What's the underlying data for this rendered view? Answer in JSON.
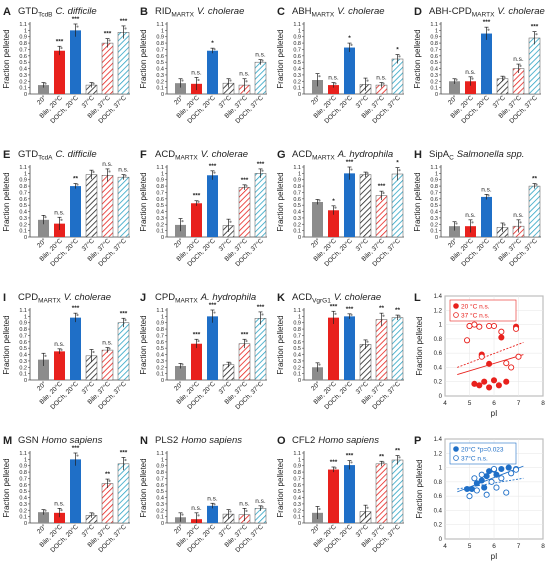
{
  "colors": {
    "ctrl": "#8c8c8c",
    "bile20": "#e8211d",
    "doch20": "#1f6fc7",
    "bile37": "#e8211d",
    "doch37": "#2ba3c4",
    "hatch37": "#222222",
    "scatter_red": "#e8211d",
    "scatter_blue": "#1f6fc7"
  },
  "categories": [
    "20°",
    "Bile, 20°C",
    "DOCh, 20°C",
    "37°C",
    "Bile, 37°C",
    "DOCh, 37°C"
  ],
  "ylabel": "Fraction pelleted",
  "yticks": [
    "0",
    "0.1",
    "0.2",
    "0.3",
    "0.4",
    "0.5",
    "0.6",
    "0.7",
    "0.8",
    "0.9",
    "1",
    "1.1"
  ],
  "chart_data": [
    {
      "type": "bar",
      "letter": "A",
      "title": "GTD",
      "sub": "TcdB",
      "species": "C. difficile",
      "values": [
        0.14,
        0.68,
        1.0,
        0.14,
        0.8,
        0.97
      ],
      "sig": [
        "",
        "***",
        "***",
        "",
        "***",
        "***"
      ],
      "ylim": [
        0,
        1.1
      ]
    },
    {
      "type": "bar",
      "letter": "B",
      "title": "RID",
      "sub": "MARTX",
      "species": "V. cholerae",
      "values": [
        0.17,
        0.16,
        0.68,
        0.17,
        0.14,
        0.5
      ],
      "sig": [
        "",
        "n.s.",
        "*",
        "",
        "n.s.",
        "n.s."
      ],
      "ylim": [
        0,
        1.1
      ]
    },
    {
      "type": "bar",
      "letter": "C",
      "title": "ABH",
      "sub": "MARTX",
      "species": "V. cholerae",
      "values": [
        0.22,
        0.14,
        0.73,
        0.15,
        0.14,
        0.55
      ],
      "sig": [
        "",
        "n.s.",
        "*",
        "",
        "n.s.",
        "*"
      ],
      "ylim": [
        0,
        1.1
      ]
    },
    {
      "type": "bar",
      "letter": "D",
      "title": "ABH-CPD",
      "sub": "MARTX",
      "species": "V. cholerae",
      "values": [
        0.2,
        0.2,
        0.95,
        0.24,
        0.4,
        0.88
      ],
      "sig": [
        "",
        "n.s.",
        "***",
        "",
        "n.s.",
        "***"
      ],
      "ylim": [
        0,
        1.1
      ]
    },
    {
      "type": "bar",
      "letter": "E",
      "title": "GTD",
      "sub": "TcdA",
      "species": "C. difficile",
      "values": [
        0.27,
        0.21,
        0.8,
        0.98,
        0.97,
        0.94
      ],
      "sig": [
        "",
        "n.s.",
        "**",
        "",
        "n.s.",
        "n.s."
      ],
      "ylim": [
        0,
        1.1
      ]
    },
    {
      "type": "bar",
      "letter": "F",
      "title": "ACD",
      "sub": "MARTX",
      "species": "V. cholerae",
      "values": [
        0.19,
        0.53,
        0.97,
        0.18,
        0.78,
        1.0
      ],
      "sig": [
        "",
        "***",
        "***",
        "",
        "***",
        "***"
      ],
      "ylim": [
        0,
        1.1
      ]
    },
    {
      "type": "bar",
      "letter": "G",
      "title": "ACD",
      "sub": "MARTX",
      "species": "A. hydrophila",
      "values": [
        0.55,
        0.42,
        1.0,
        0.98,
        0.65,
        0.99
      ],
      "sig": [
        "",
        "*",
        "***",
        "",
        "***",
        "*"
      ],
      "ylim": [
        0,
        1.1
      ]
    },
    {
      "type": "bar",
      "letter": "H",
      "title": "SipA",
      "sub": "C",
      "species": "Salmonella spp.",
      "values": [
        0.17,
        0.17,
        0.63,
        0.15,
        0.17,
        0.8
      ],
      "sig": [
        "",
        "n.s.",
        "n.s.",
        "",
        "n.s.",
        "**"
      ],
      "ylim": [
        0,
        1.1
      ]
    },
    {
      "type": "bar",
      "letter": "I",
      "title": "CPD",
      "sub": "MARTX",
      "species": "V. cholerae",
      "values": [
        0.32,
        0.45,
        0.98,
        0.38,
        0.47,
        0.9
      ],
      "sig": [
        "",
        "n.s.",
        "***",
        "",
        "n.s.",
        "***"
      ],
      "ylim": [
        0,
        1.1
      ]
    },
    {
      "type": "bar",
      "letter": "J",
      "title": "CPD",
      "sub": "MARTX",
      "species": "A. hydrophila",
      "values": [
        0.22,
        0.57,
        1.0,
        0.24,
        0.57,
        0.97
      ],
      "sig": [
        "",
        "***",
        "***",
        "",
        "***",
        "***"
      ],
      "ylim": [
        0,
        1.1
      ]
    },
    {
      "type": "bar",
      "letter": "K",
      "title": "ACD",
      "sub": "VgrG1",
      "species": "V. cholerae",
      "values": [
        0.2,
        0.98,
        1.0,
        0.56,
        0.95,
        0.98
      ],
      "sig": [
        "",
        "***",
        "***",
        "",
        "**",
        "**"
      ],
      "ylim": [
        0,
        1.1
      ]
    },
    {
      "type": "scatter",
      "letter": "L",
      "legend": [
        "20 °C n.s.",
        "37 °C n.s."
      ],
      "xlabel": "pI",
      "ylabel": "Fraction pelleted",
      "xlim": [
        4,
        8
      ],
      "ylim": [
        0,
        1.4
      ],
      "xticks": [
        "4",
        "5",
        "6",
        "7",
        "8"
      ],
      "yticks": [
        "0",
        "0.2",
        "0.4",
        "0.6",
        "0.8",
        "1",
        "1.2",
        "1.4"
      ],
      "series": [
        {
          "filled": true,
          "points": [
            [
              5.0,
              0.98
            ],
            [
              5.4,
              0.15
            ],
            [
              5.6,
              0.2
            ],
            [
              5.8,
              0.45
            ],
            [
              5.8,
              0.12
            ],
            [
              6.0,
              0.22
            ],
            [
              6.2,
              0.15
            ],
            [
              6.3,
              0.82
            ],
            [
              6.5,
              0.2
            ],
            [
              5.5,
              0.58
            ],
            [
              6.9,
              0.97
            ],
            [
              5.2,
              0.17
            ]
          ],
          "fit": [
            [
              4.5,
              0.3
            ],
            [
              7.2,
              0.58
            ]
          ]
        },
        {
          "filled": false,
          "points": [
            [
              4.9,
              0.78
            ],
            [
              5.0,
              0.98
            ],
            [
              5.4,
              0.97
            ],
            [
              5.5,
              0.55
            ],
            [
              5.8,
              0.98
            ],
            [
              6.0,
              0.98
            ],
            [
              6.3,
              0.9
            ],
            [
              6.5,
              0.46
            ],
            [
              6.7,
              0.4
            ],
            [
              6.9,
              0.94
            ],
            [
              7.0,
              0.55
            ],
            [
              5.2,
              1.0
            ]
          ],
          "fit": [
            [
              4.5,
              0.4
            ],
            [
              7.2,
              0.75
            ]
          ]
        }
      ]
    },
    {
      "type": "bar",
      "letter": "M",
      "title": "GSN",
      "sub": "",
      "species": "Homo sapiens",
      "values": [
        0.17,
        0.16,
        1.0,
        0.12,
        0.62,
        0.93
      ],
      "sig": [
        "",
        "n.s.",
        "***",
        "",
        "**",
        "***"
      ],
      "ylim": [
        0,
        1.1
      ]
    },
    {
      "type": "bar",
      "letter": "N",
      "title": "PLS2",
      "sub": "",
      "species": "Homo sapiens",
      "values": [
        0.09,
        0.06,
        0.27,
        0.14,
        0.13,
        0.23
      ],
      "sig": [
        "",
        "n.s.",
        "n.s.",
        "",
        "n.s.",
        "n.s."
      ],
      "ylim": [
        0,
        1.1
      ]
    },
    {
      "type": "bar",
      "letter": "O",
      "title": "CFL2",
      "sub": "",
      "species": "Homo sapiens",
      "values": [
        0.16,
        0.84,
        0.91,
        0.18,
        0.93,
        0.99
      ],
      "sig": [
        "",
        "***",
        "***",
        "",
        "**",
        "**"
      ],
      "ylim": [
        0,
        1.1
      ]
    },
    {
      "type": "scatter",
      "letter": "P",
      "legend": [
        "20°C *p=0.023",
        "37°C n.s."
      ],
      "xlabel": "pI",
      "ylabel": "Fraction pelleted",
      "xlim": [
        4,
        8
      ],
      "ylim": [
        0,
        1.4
      ],
      "xticks": [
        "4",
        "5",
        "6",
        "7",
        "8"
      ],
      "yticks": [
        "0",
        "0.2",
        "0.4",
        "0.6",
        "0.8",
        "1",
        "1.2",
        "1.4"
      ],
      "series": [
        {
          "filled": true,
          "points": [
            [
              4.9,
              0.7
            ],
            [
              5.1,
              0.7
            ],
            [
              5.3,
              0.78
            ],
            [
              5.5,
              0.82
            ],
            [
              5.7,
              0.88
            ],
            [
              5.8,
              0.95
            ],
            [
              6.0,
              0.97
            ],
            [
              6.1,
              0.9
            ],
            [
              6.3,
              0.98
            ],
            [
              6.6,
              1.0
            ],
            [
              6.9,
              0.98
            ],
            [
              5.6,
              0.72
            ]
          ],
          "fit": [
            [
              4.5,
              0.66
            ],
            [
              7.2,
              1.02
            ]
          ]
        },
        {
          "filled": false,
          "points": [
            [
              5.0,
              0.6
            ],
            [
              5.3,
              0.68
            ],
            [
              5.5,
              0.9
            ],
            [
              5.7,
              0.62
            ],
            [
              5.9,
              0.8
            ],
            [
              6.1,
              0.72
            ],
            [
              6.3,
              0.85
            ],
            [
              6.5,
              0.65
            ],
            [
              6.7,
              0.92
            ],
            [
              6.9,
              0.97
            ],
            [
              5.2,
              0.85
            ],
            [
              6.0,
              0.98
            ]
          ],
          "fit": [
            [
              4.5,
              0.7
            ],
            [
              7.2,
              0.85
            ]
          ]
        }
      ]
    }
  ]
}
